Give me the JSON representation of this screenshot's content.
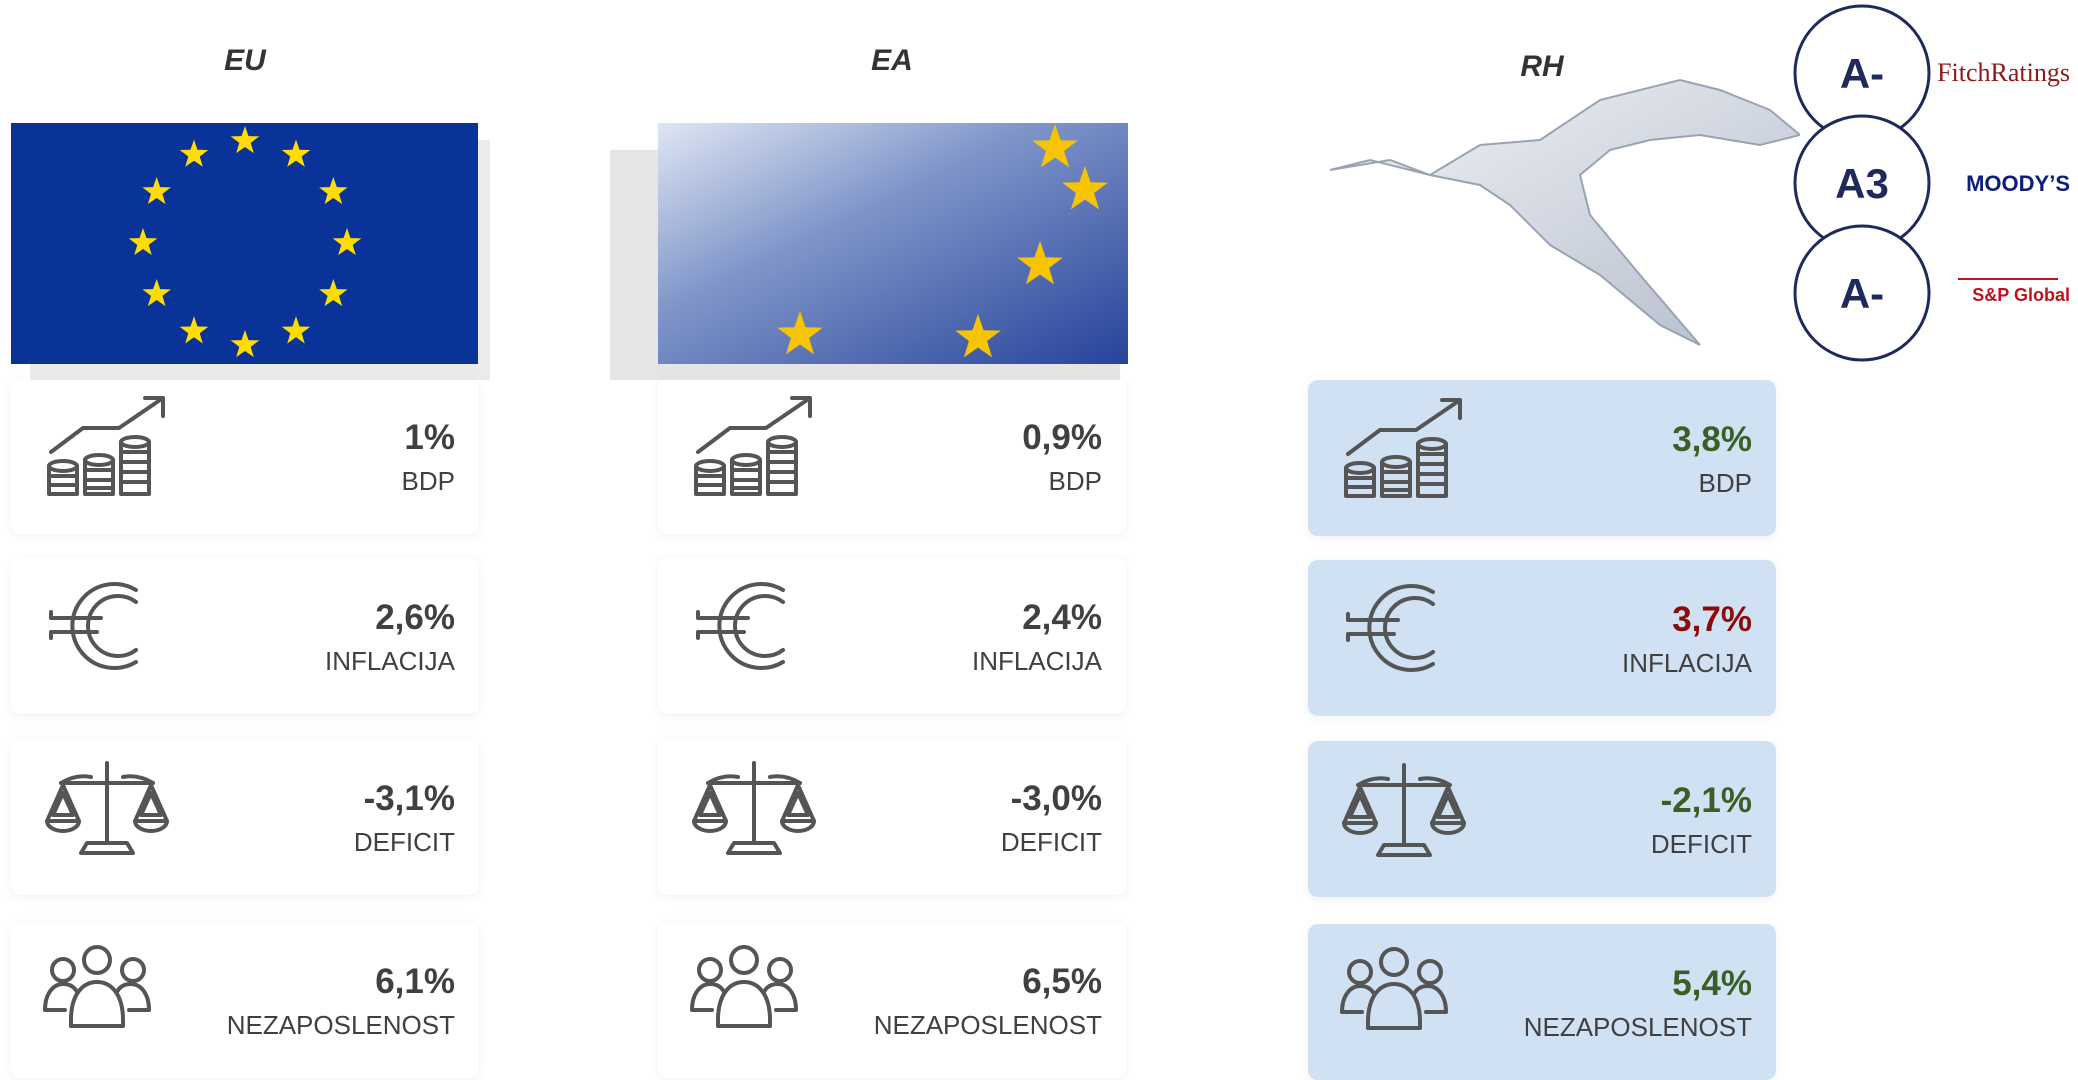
{
  "columns": [
    {
      "title": "EU",
      "items": [
        {
          "value": "1%",
          "label": "BDP",
          "color": "#404040"
        },
        {
          "value": "2,6%",
          "label": "INFLACIJA",
          "color": "#404040"
        },
        {
          "value": "-3,1%",
          "label": "DEFICIT",
          "color": "#404040"
        },
        {
          "value": "6,1%",
          "label": "NEZAPOSLENOST",
          "color": "#404040"
        }
      ]
    },
    {
      "title": "EA",
      "items": [
        {
          "value": "0,9%",
          "label": "BDP",
          "color": "#404040"
        },
        {
          "value": "2,4%",
          "label": "INFLACIJA",
          "color": "#404040"
        },
        {
          "value": "-3,0%",
          "label": "DEFICIT",
          "color": "#404040"
        },
        {
          "value": "6,5%",
          "label": "NEZAPOSLENOST",
          "color": "#404040"
        }
      ]
    },
    {
      "title": "RH",
      "items": [
        {
          "value": "3,8%",
          "label": "BDP",
          "color": "#3a5f24"
        },
        {
          "value": "3,7%",
          "label": "INFLACIJA",
          "color": "#8b0b0b"
        },
        {
          "value": "-2,1%",
          "label": "DEFICIT",
          "color": "#3a5f24"
        },
        {
          "value": "5,4%",
          "label": "NEZAPOSLENOST",
          "color": "#3a5f24"
        }
      ]
    }
  ],
  "ratings": [
    {
      "grade": "A-",
      "agency": "FitchRatings"
    },
    {
      "grade": "A3",
      "agency": "MOODY’S"
    },
    {
      "grade": "A-",
      "agency": "S&P Global"
    }
  ]
}
